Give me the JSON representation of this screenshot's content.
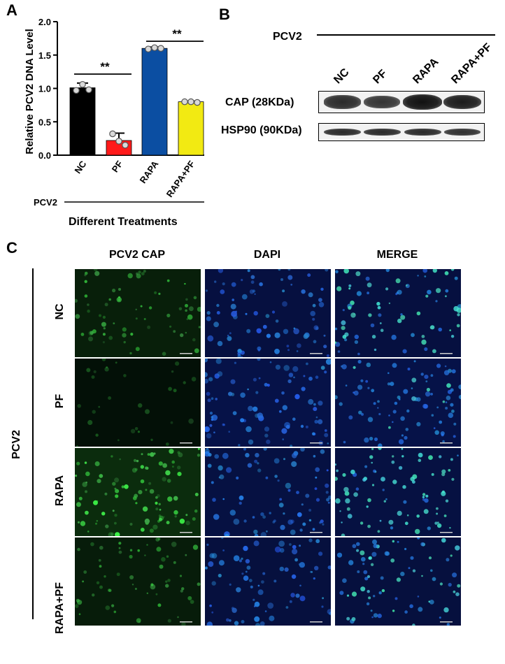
{
  "panel_a": {
    "letter": "A",
    "ylabel": "Relative PCV2 DNA Level",
    "xlabel": "Different Treatments",
    "group_label": "PCV2",
    "chart_data": {
      "type": "bar",
      "categories": [
        "NC",
        "PF",
        "RAPA",
        "RAPA+PF"
      ],
      "values": [
        1.01,
        0.22,
        1.6,
        0.8
      ],
      "errors": [
        0.07,
        0.11,
        0.02,
        0.01
      ],
      "points": [
        [
          0.97,
          1.06,
          0.98
        ],
        [
          0.32,
          0.21,
          0.15
        ],
        [
          1.59,
          1.61,
          1.6
        ],
        [
          0.8,
          0.8,
          0.79
        ]
      ],
      "colors": [
        "#000000",
        "#ff1a1a",
        "#0b4ea2",
        "#f2ea12"
      ],
      "yticks": [
        "0.0",
        "0.5",
        "1.0",
        "1.5",
        "2.0"
      ],
      "ylim": [
        0,
        2.0
      ],
      "significance": [
        {
          "from": 0,
          "to": 1,
          "label": "**"
        },
        {
          "from": 2,
          "to": 3,
          "label": "**"
        }
      ]
    }
  },
  "panel_b": {
    "letter": "B",
    "group_label": "PCV2",
    "lanes": [
      "NC",
      "PF",
      "RAPA",
      "RAPA+PF"
    ],
    "rows": [
      {
        "label": "CAP (28KDa)",
        "intensity": [
          0.75,
          0.65,
          1.0,
          0.9
        ]
      },
      {
        "label": "HSP90 (90KDa)",
        "intensity": [
          0.75,
          0.75,
          0.75,
          0.7
        ]
      }
    ]
  },
  "panel_c": {
    "letter": "C",
    "group_label": "PCV2",
    "columns": [
      "PCV2 CAP",
      "DAPI",
      "MERGE"
    ],
    "rows": [
      "NC",
      "PF",
      "RAPA",
      "RAPA+PF"
    ],
    "green_levels": [
      0.55,
      0.12,
      0.9,
      0.45
    ],
    "blue_levels": [
      0.6,
      0.8,
      0.65,
      0.55
    ]
  }
}
